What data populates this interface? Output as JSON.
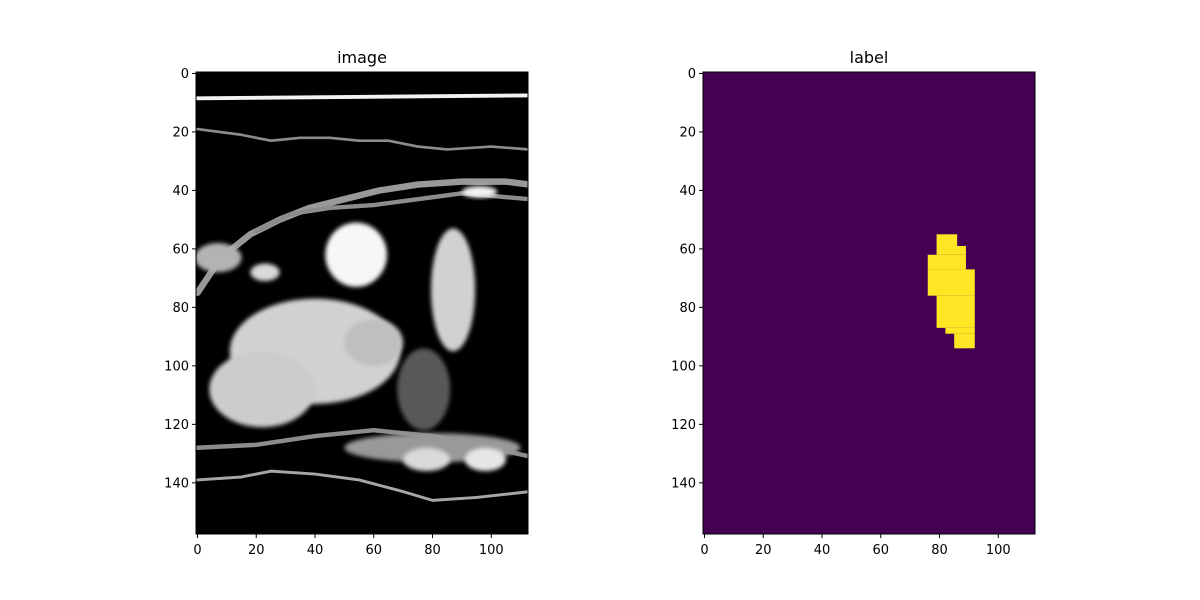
{
  "chart_data": [
    {
      "type": "heatmap",
      "title": "image",
      "colormap": "gray",
      "x_ticks": [
        "0",
        "20",
        "40",
        "60",
        "80",
        "100"
      ],
      "y_ticks": [
        "0",
        "20",
        "40",
        "60",
        "80",
        "100",
        "120",
        "140"
      ],
      "xlim": [
        -0.5,
        112.5
      ],
      "ylim": [
        157.5,
        -0.5
      ],
      "bright_features": [
        {
          "kind": "line",
          "points": [
            [
              0,
              8.5
            ],
            [
              113,
              7.5
            ]
          ],
          "intensity": 0.95,
          "width": 1.3
        },
        {
          "kind": "line",
          "points": [
            [
              0,
              19
            ],
            [
              15,
              21
            ],
            [
              25,
              23
            ],
            [
              35,
              22
            ],
            [
              45,
              22
            ],
            [
              55,
              23
            ],
            [
              65,
              23
            ],
            [
              75,
              25
            ],
            [
              85,
              26
            ],
            [
              100,
              25
            ],
            [
              113,
              26
            ]
          ],
          "intensity": 0.55,
          "width": 0.9
        },
        {
          "kind": "line",
          "points": [
            [
              0,
              75
            ],
            [
              8,
              63
            ],
            [
              18,
              55
            ],
            [
              28,
              50
            ],
            [
              38,
              46
            ],
            [
              50,
              43
            ],
            [
              62,
              40
            ],
            [
              75,
              38
            ],
            [
              90,
              37
            ],
            [
              105,
              37
            ],
            [
              113,
              38
            ]
          ],
          "intensity": 0.6,
          "width": 2.2
        },
        {
          "kind": "line",
          "points": [
            [
              20,
              54
            ],
            [
              32,
              48
            ],
            [
              45,
              46
            ],
            [
              60,
              45
            ],
            [
              75,
              43
            ],
            [
              90,
              41
            ],
            [
              113,
              43
            ]
          ],
          "intensity": 0.55,
          "width": 1.5
        },
        {
          "kind": "line",
          "points": [
            [
              0,
              128
            ],
            [
              20,
              127
            ],
            [
              40,
              124
            ],
            [
              60,
              122
            ],
            [
              80,
              124
            ],
            [
              100,
              128
            ],
            [
              113,
              131
            ]
          ],
          "intensity": 0.55,
          "width": 1.5
        },
        {
          "kind": "line",
          "points": [
            [
              0,
              139
            ],
            [
              15,
              138
            ],
            [
              25,
              136
            ],
            [
              40,
              137
            ],
            [
              55,
              139
            ],
            [
              70,
              143
            ],
            [
              80,
              146
            ],
            [
              95,
              145
            ],
            [
              113,
              143
            ]
          ],
          "intensity": 0.65,
          "width": 1.0
        },
        {
          "kind": "ellipse",
          "cx": 96,
          "cy": 40.5,
          "rx": 6,
          "ry": 2,
          "intensity": 0.95
        },
        {
          "kind": "ellipse",
          "cx": 54,
          "cy": 62,
          "rx": 10.5,
          "ry": 11,
          "intensity": 0.97
        },
        {
          "kind": "ellipse",
          "cx": 87,
          "cy": 74,
          "rx": 7.5,
          "ry": 21,
          "intensity": 0.82
        },
        {
          "kind": "ellipse",
          "cx": 7,
          "cy": 63,
          "rx": 8,
          "ry": 5,
          "intensity": 0.7
        },
        {
          "kind": "ellipse",
          "cx": 23,
          "cy": 68,
          "rx": 5,
          "ry": 3,
          "intensity": 0.85
        },
        {
          "kind": "ellipse",
          "cx": 40,
          "cy": 95,
          "rx": 29,
          "ry": 18,
          "intensity": 0.82
        },
        {
          "kind": "ellipse",
          "cx": 22,
          "cy": 108,
          "rx": 18,
          "ry": 13,
          "intensity": 0.8
        },
        {
          "kind": "ellipse",
          "cx": 60,
          "cy": 92,
          "rx": 10,
          "ry": 8,
          "intensity": 0.75
        },
        {
          "kind": "ellipse",
          "cx": 77,
          "cy": 108,
          "rx": 9,
          "ry": 14,
          "intensity": 0.35
        },
        {
          "kind": "ellipse",
          "cx": 80,
          "cy": 128,
          "rx": 30,
          "ry": 5,
          "intensity": 0.6
        },
        {
          "kind": "ellipse",
          "cx": 98,
          "cy": 132,
          "rx": 7,
          "ry": 4,
          "intensity": 0.9
        },
        {
          "kind": "ellipse",
          "cx": 78,
          "cy": 132,
          "rx": 8,
          "ry": 4,
          "intensity": 0.85
        }
      ]
    },
    {
      "type": "heatmap",
      "title": "label",
      "colormap": "viridis",
      "background_color": "#440154",
      "region_color": "#fde725",
      "x_ticks": [
        "0",
        "20",
        "40",
        "60",
        "80",
        "100"
      ],
      "y_ticks": [
        "0",
        "20",
        "40",
        "60",
        "80",
        "100",
        "120",
        "140"
      ],
      "xlim": [
        -0.5,
        112.5
      ],
      "ylim": [
        157.5,
        -0.5
      ],
      "label_mask_rows": [
        {
          "y": [
            55,
            59
          ],
          "x": [
            79,
            86
          ]
        },
        {
          "y": [
            59,
            62
          ],
          "x": [
            79,
            89
          ]
        },
        {
          "y": [
            62,
            67
          ],
          "x": [
            76,
            89
          ]
        },
        {
          "y": [
            67,
            76
          ],
          "x": [
            76,
            92
          ]
        },
        {
          "y": [
            76,
            87
          ],
          "x": [
            79,
            92
          ]
        },
        {
          "y": [
            87,
            89
          ],
          "x": [
            82,
            92
          ]
        },
        {
          "y": [
            89,
            94
          ],
          "x": [
            85,
            92
          ]
        }
      ]
    }
  ]
}
